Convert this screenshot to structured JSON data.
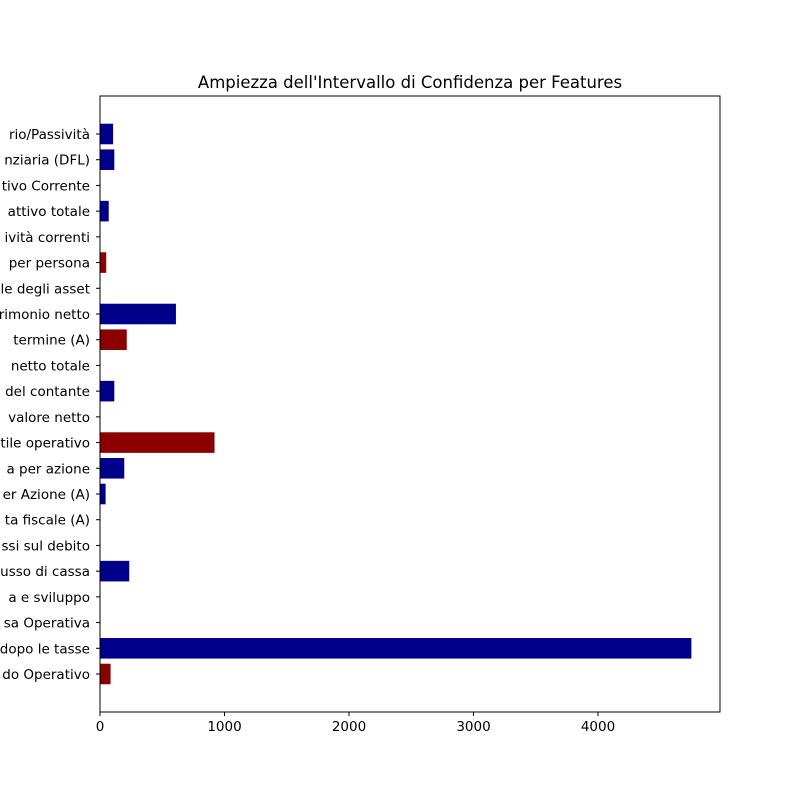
{
  "chart_data": {
    "type": "bar",
    "orientation": "horizontal",
    "title": "Ampiezza dell'Intervallo di Confidenza per Features",
    "xlabel": "",
    "ylabel": "",
    "xlim": [
      0,
      5000
    ],
    "x_ticks": [
      0,
      1000,
      2000,
      3000,
      4000
    ],
    "x_tick_labels": [
      "0",
      "1000",
      "2000",
      "3000",
      "4000"
    ],
    "grid": false,
    "categories": [
      "rio/Passività",
      "nziaria (DFL)",
      "tivo Corrente",
      "attivo totale",
      "ività correnti",
      "per persona",
      "le degli asset",
      "rimonio netto",
      "termine (A)",
      "netto totale",
      "del contante",
      "valore netto",
      "tile operativo",
      "a per azione",
      "er Azione (A)",
      "ta fiscale (A)",
      "ssi sul debito",
      "usso di cassa",
      "a e sviluppo",
      "sa Operativa",
      "dopo le tasse",
      "do Operativo"
    ],
    "values": [
      105,
      115,
      0,
      70,
      0,
      50,
      0,
      610,
      215,
      0,
      115,
      0,
      920,
      195,
      45,
      0,
      0,
      235,
      0,
      0,
      4750,
      85
    ],
    "highlighted": [
      false,
      false,
      true,
      false,
      false,
      true,
      false,
      false,
      true,
      true,
      false,
      false,
      true,
      false,
      false,
      false,
      true,
      false,
      false,
      true,
      false,
      true
    ],
    "colors": {
      "default_bar": "#00008b",
      "highlight_bar": "#8b0000",
      "default_label": "#000000",
      "highlight_label": "#8b0000"
    }
  }
}
